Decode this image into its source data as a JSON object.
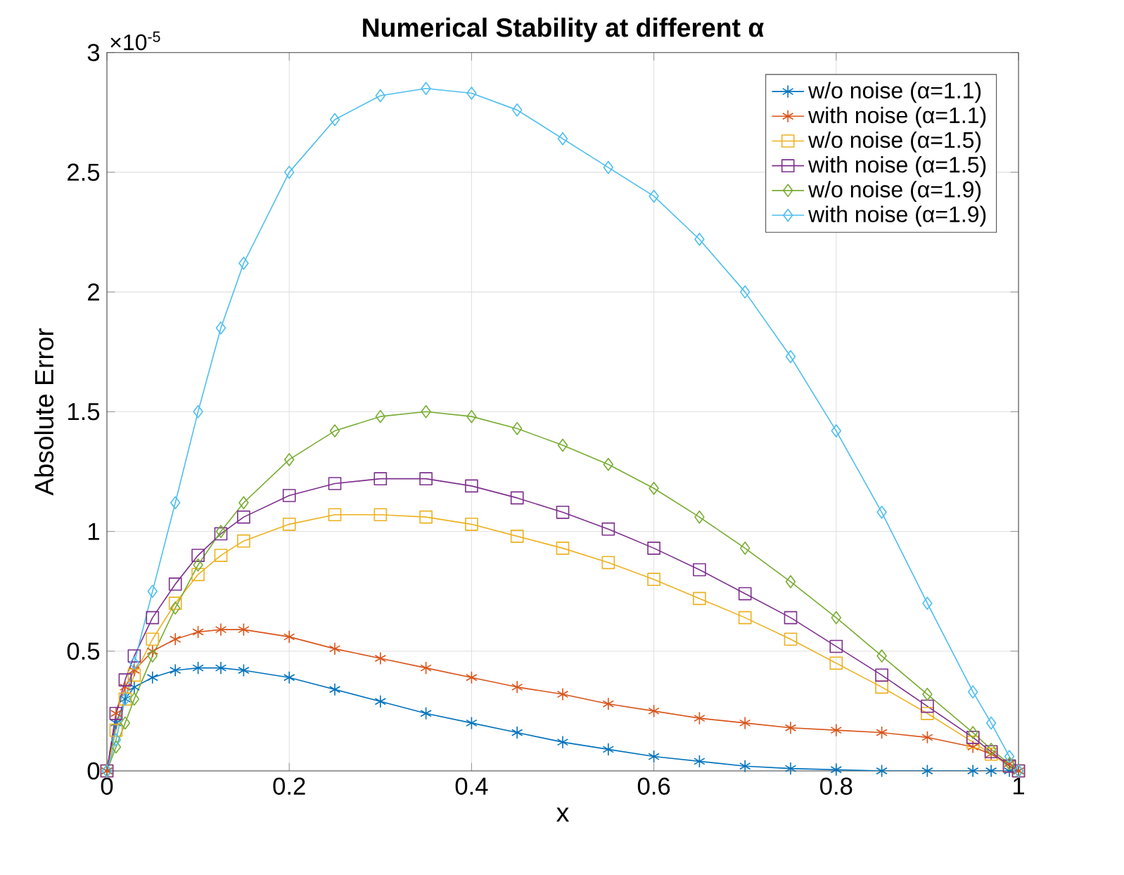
{
  "chart_data": {
    "type": "line",
    "title": "Numerical Stability at different α",
    "xlabel": "x",
    "ylabel": "Absolute Error",
    "annotations": [
      "×10$^{-5}$"
    ],
    "x": [
      0,
      0.01,
      0.02,
      0.03,
      0.05,
      0.075,
      0.1,
      0.125,
      0.15,
      0.2,
      0.25,
      0.3,
      0.35,
      0.4,
      0.45,
      0.5,
      0.55,
      0.6,
      0.65,
      0.7,
      0.75,
      0.8,
      0.85,
      0.9,
      0.95,
      0.97,
      0.99,
      1
    ],
    "xlim": [
      0,
      1
    ],
    "ylim": [
      0,
      3
    ],
    "xticks": [
      0,
      0.2,
      0.4,
      0.6,
      0.8,
      1
    ],
    "yticks": [
      0,
      0.5,
      1,
      1.5,
      2,
      2.5,
      3
    ],
    "grid": true,
    "legend": "top right",
    "series": [
      {
        "name": "w/o noise (α=1.1)",
        "color": "#0072bd",
        "marker": "cross",
        "values": [
          0,
          0.2,
          0.3,
          0.35,
          0.39,
          0.42,
          0.43,
          0.43,
          0.42,
          0.39,
          0.34,
          0.29,
          0.24,
          0.2,
          0.16,
          0.12,
          0.09,
          0.06,
          0.04,
          0.02,
          0.01,
          0.005,
          0,
          0,
          0,
          0,
          0,
          0
        ]
      },
      {
        "name": "with noise (α=1.1)",
        "color": "#d95319",
        "marker": "cross",
        "values": [
          0,
          0.24,
          0.35,
          0.42,
          0.5,
          0.55,
          0.58,
          0.59,
          0.59,
          0.56,
          0.51,
          0.47,
          0.43,
          0.39,
          0.35,
          0.32,
          0.28,
          0.25,
          0.22,
          0.2,
          0.18,
          0.17,
          0.16,
          0.14,
          0.1,
          0.07,
          0.03,
          0
        ]
      },
      {
        "name": "w/o noise (α=1.5)",
        "color": "#edb120",
        "marker": "square",
        "values": [
          0,
          0.17,
          0.3,
          0.4,
          0.55,
          0.7,
          0.82,
          0.9,
          0.96,
          1.03,
          1.07,
          1.07,
          1.06,
          1.03,
          0.98,
          0.93,
          0.87,
          0.8,
          0.72,
          0.64,
          0.55,
          0.45,
          0.35,
          0.24,
          0.12,
          0.07,
          0.02,
          0
        ]
      },
      {
        "name": "with noise (α=1.5)",
        "color": "#7e2f8e",
        "marker": "square",
        "values": [
          0,
          0.24,
          0.38,
          0.48,
          0.64,
          0.78,
          0.9,
          0.99,
          1.06,
          1.15,
          1.2,
          1.22,
          1.22,
          1.19,
          1.14,
          1.08,
          1.01,
          0.93,
          0.84,
          0.74,
          0.64,
          0.52,
          0.4,
          0.27,
          0.14,
          0.08,
          0.02,
          0
        ]
      },
      {
        "name": "w/o noise (α=1.9)",
        "color": "#77ac30",
        "marker": "diamond",
        "values": [
          0,
          0.1,
          0.2,
          0.3,
          0.48,
          0.68,
          0.86,
          1.0,
          1.12,
          1.3,
          1.42,
          1.48,
          1.5,
          1.48,
          1.43,
          1.36,
          1.28,
          1.18,
          1.06,
          0.93,
          0.79,
          0.64,
          0.48,
          0.32,
          0.16,
          0.09,
          0.03,
          0
        ]
      },
      {
        "name": "with noise (α=1.9)",
        "color": "#4dbeee",
        "marker": "diamond",
        "values": [
          0,
          0.13,
          0.3,
          0.45,
          0.75,
          1.12,
          1.5,
          1.85,
          2.12,
          2.5,
          2.72,
          2.82,
          2.85,
          2.83,
          2.76,
          2.64,
          2.52,
          2.4,
          2.22,
          2.0,
          1.73,
          1.42,
          1.08,
          0.7,
          0.33,
          0.2,
          0.06,
          0
        ]
      }
    ]
  }
}
